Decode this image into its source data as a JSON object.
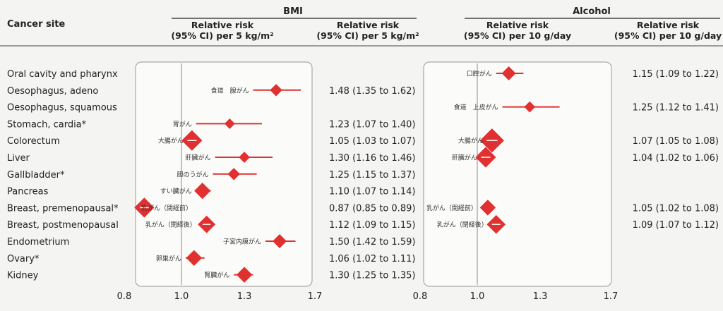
{
  "header": {
    "site_col": "Cancer site",
    "bmi_group": "BMI",
    "alcohol_group": "Alcohol",
    "bmi_col1": [
      "Relative risk",
      "(95% CI) per 5 kg/m²"
    ],
    "bmi_col2": [
      "Relative risk",
      "(95% CI) per 5 kg/m²"
    ],
    "alc_col1": [
      "Relative risk",
      "(95% CI) per 10 g/day"
    ],
    "alc_col2": [
      "Relative risk",
      "(95% CI) per 10 g/day"
    ]
  },
  "chart_data": [
    {
      "type": "forest",
      "name": "BMI",
      "xlim": [
        0.8,
        1.7
      ],
      "xticks": [
        "0.8",
        "1.0",
        "1.3",
        "1.7"
      ],
      "reference": 1.0,
      "color": "#e03030",
      "rows": [
        {
          "site": "Oral cavity and pharynx",
          "rr": null,
          "lo": null,
          "hi": null,
          "label": "",
          "ci_text": "",
          "size": 0
        },
        {
          "site": "Oesophagus, adeno",
          "rr": 1.48,
          "lo": 1.35,
          "hi": 1.62,
          "label": "食道　腺がん",
          "ci_text": "1.48 (1.35 to 1.62)",
          "size": 1
        },
        {
          "site": "Oesophagus, squamous",
          "rr": null,
          "lo": null,
          "hi": null,
          "label": "",
          "ci_text": "",
          "size": 0
        },
        {
          "site": "Stomach, cardia*",
          "rr": 1.23,
          "lo": 1.07,
          "hi": 1.4,
          "label": "胃がん",
          "ci_text": "1.23 (1.07 to 1.40)",
          "size": 0.7
        },
        {
          "site": "Colorectum",
          "rr": 1.05,
          "lo": 1.03,
          "hi": 1.07,
          "label": "大腸がん",
          "ci_text": "1.05 (1.03 to 1.07)",
          "size": 2.4
        },
        {
          "site": "Liver",
          "rr": 1.3,
          "lo": 1.16,
          "hi": 1.46,
          "label": "肝臓がん",
          "ci_text": "1.30 (1.16 to 1.46)",
          "size": 0.8
        },
        {
          "site": "Gallbladder*",
          "rr": 1.25,
          "lo": 1.15,
          "hi": 1.37,
          "label": "胆のうがん",
          "ci_text": "1.25 (1.15 to 1.37)",
          "size": 1
        },
        {
          "site": "Pancreas",
          "rr": 1.1,
          "lo": 1.07,
          "hi": 1.14,
          "label": "すい臓がん",
          "ci_text": "1.10 (1.07 to 1.14)",
          "size": 1.7
        },
        {
          "site": "Breast, premenopausal*",
          "rr": 0.87,
          "lo": 0.85,
          "hi": 0.89,
          "label": "乳がん（閉経前）",
          "ci_text": "0.87 (0.85 to 0.89)",
          "size": 2.3
        },
        {
          "site": "Breast, postmenopausal",
          "rr": 1.12,
          "lo": 1.09,
          "hi": 1.15,
          "label": "乳がん（閉経後）",
          "ci_text": "1.12 (1.09 to 1.15)",
          "size": 1.9
        },
        {
          "site": "Endometrium",
          "rr": 1.5,
          "lo": 1.42,
          "hi": 1.59,
          "label": "子宮内膜がん",
          "ci_text": "1.50 (1.42 to 1.59)",
          "size": 1.3
        },
        {
          "site": "Ovary*",
          "rr": 1.06,
          "lo": 1.02,
          "hi": 1.11,
          "label": "卵巣がん",
          "ci_text": "1.06 (1.02 to 1.11)",
          "size": 1.6
        },
        {
          "site": "Kidney",
          "rr": 1.3,
          "lo": 1.25,
          "hi": 1.35,
          "label": "腎臓がん",
          "ci_text": "1.30 (1.25 to 1.35)",
          "size": 1.6
        }
      ]
    },
    {
      "type": "forest",
      "name": "Alcohol",
      "xlim": [
        0.8,
        1.7
      ],
      "xticks": [
        "0.8",
        "1.0",
        "1.3",
        "1.7"
      ],
      "reference": 1.0,
      "color": "#e03030",
      "rows": [
        {
          "site": "Oral cavity and pharynx",
          "rr": 1.15,
          "lo": 1.09,
          "hi": 1.22,
          "label": "口腔がん",
          "ci_text": "1.15 (1.09 to 1.22)",
          "size": 1.3
        },
        {
          "site": "Oesophagus, adeno",
          "rr": null,
          "lo": null,
          "hi": null,
          "label": "",
          "ci_text": "",
          "size": 0
        },
        {
          "site": "Oesophagus, squamous",
          "rr": 1.25,
          "lo": 1.12,
          "hi": 1.41,
          "label": "食道　上皮がん",
          "ci_text": "1.25 (1.12 to 1.41)",
          "size": 0.8
        },
        {
          "site": "Stomach, cardia*",
          "rr": null,
          "lo": null,
          "hi": null,
          "label": "",
          "ci_text": "",
          "size": 0
        },
        {
          "site": "Colorectum",
          "rr": 1.07,
          "lo": 1.05,
          "hi": 1.08,
          "label": "大腸がん",
          "ci_text": "1.07 (1.05 to 1.08)",
          "size": 3
        },
        {
          "site": "Liver",
          "rr": 1.04,
          "lo": 1.02,
          "hi": 1.06,
          "label": "肝臓がん",
          "ci_text": "1.04 (1.02 to 1.06)",
          "size": 2.4
        },
        {
          "site": "Gallbladder*",
          "rr": null,
          "lo": null,
          "hi": null,
          "label": "",
          "ci_text": "",
          "size": 0
        },
        {
          "site": "Pancreas",
          "rr": null,
          "lo": null,
          "hi": null,
          "label": "",
          "ci_text": "",
          "size": 0
        },
        {
          "site": "Breast, premenopausal*",
          "rr": 1.05,
          "lo": 1.02,
          "hi": 1.08,
          "label": "乳がん（閉経前）",
          "ci_text": "1.05 (1.02 to 1.08)",
          "size": 1.6
        },
        {
          "site": "Breast, postmenopausal",
          "rr": 1.09,
          "lo": 1.07,
          "hi": 1.12,
          "label": "乳がん（閉経後）",
          "ci_text": "1.09 (1.07 to 1.12)",
          "size": 2.1
        },
        {
          "site": "Endometrium",
          "rr": null,
          "lo": null,
          "hi": null,
          "label": "",
          "ci_text": "",
          "size": 0
        },
        {
          "site": "Ovary*",
          "rr": null,
          "lo": null,
          "hi": null,
          "label": "",
          "ci_text": "",
          "size": 0
        },
        {
          "site": "Kidney",
          "rr": null,
          "lo": null,
          "hi": null,
          "label": "",
          "ci_text": "",
          "size": 0
        }
      ]
    }
  ]
}
